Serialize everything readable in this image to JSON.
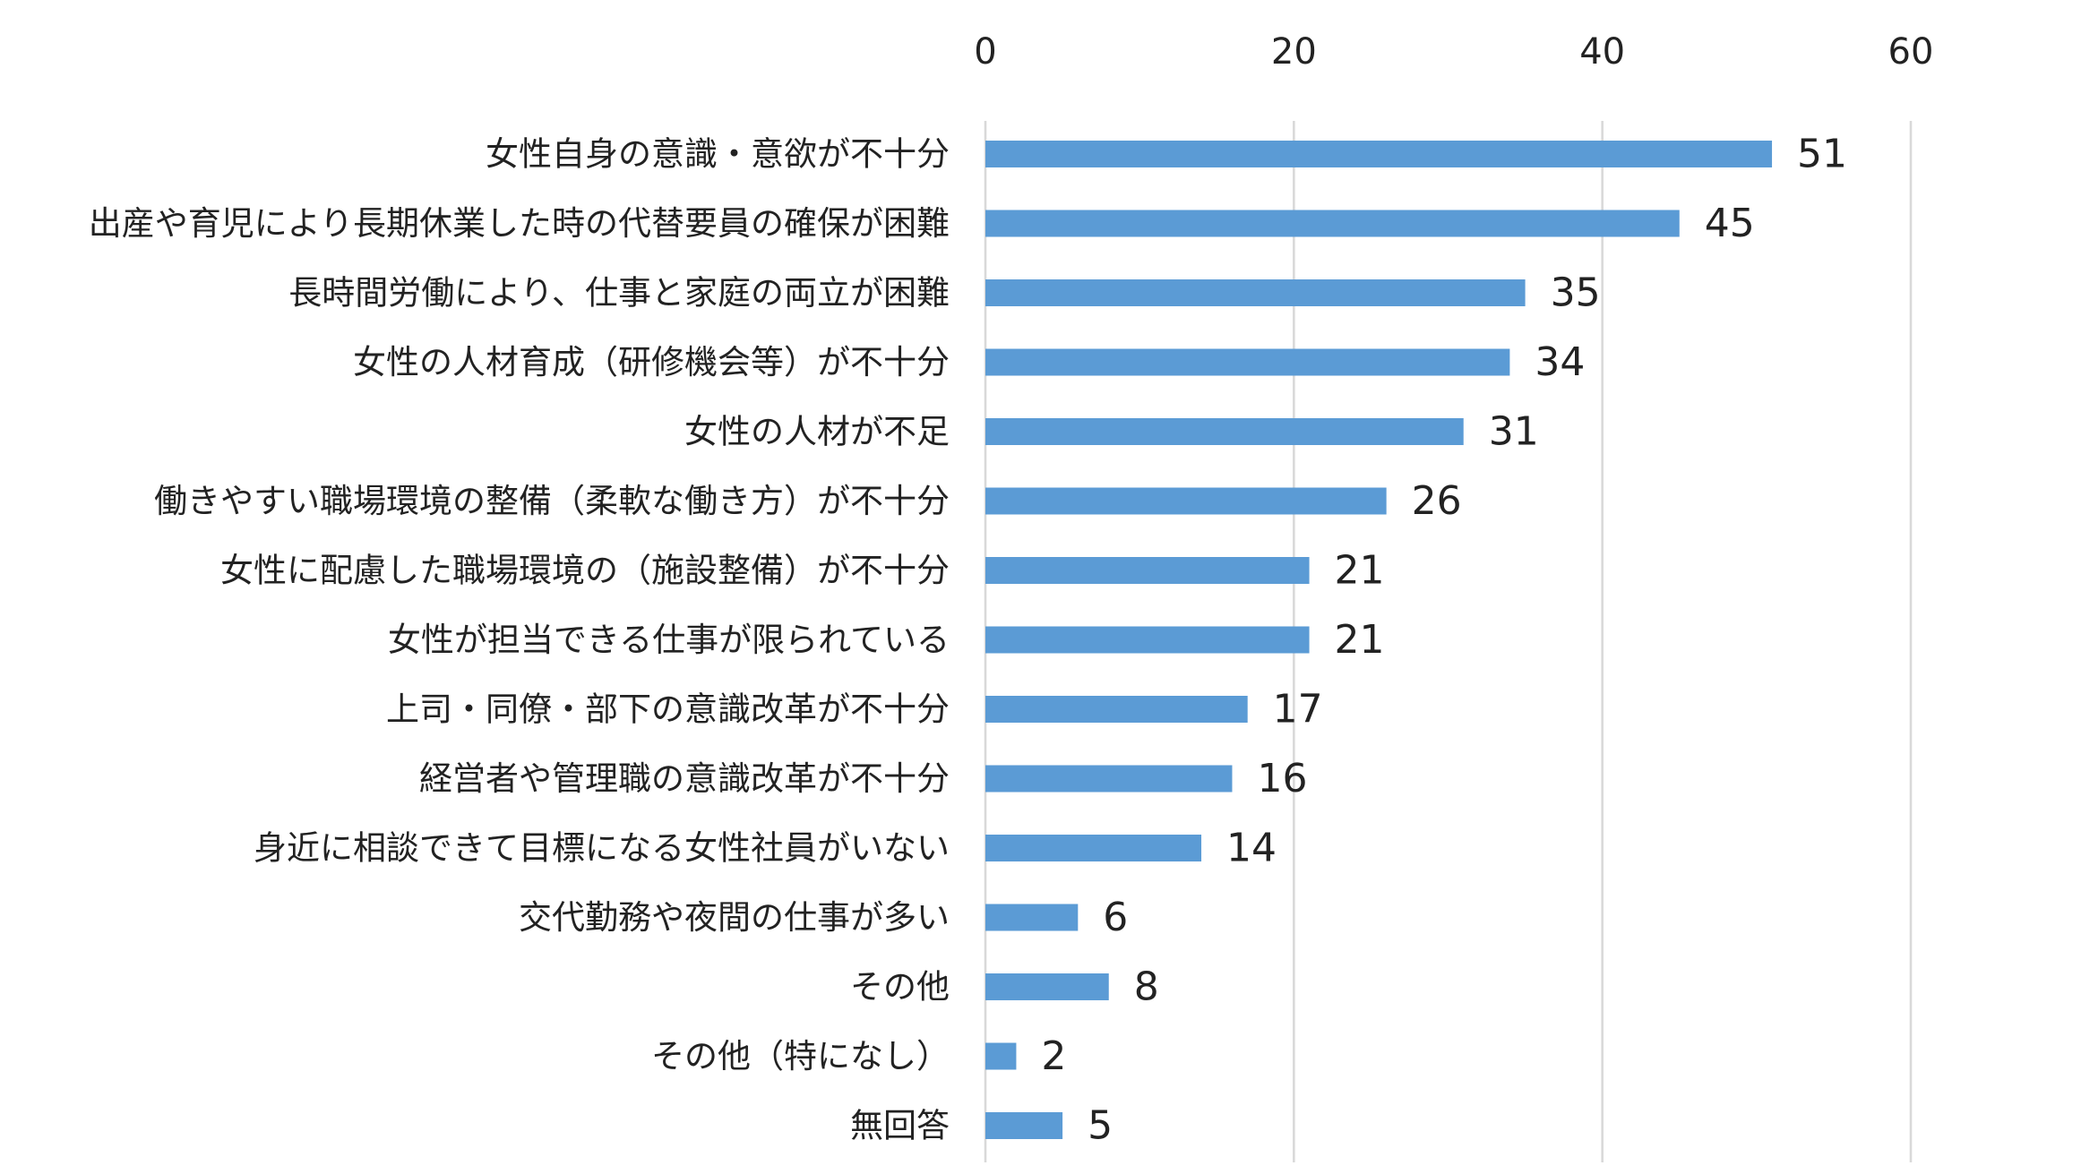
{
  "chart_data": {
    "type": "bar",
    "orientation": "horizontal",
    "categories": [
      "女性自身の意識・意欲が不十分",
      "出産や育児により長期休業した時の代替要員の確保が困難",
      "長時間労働により、仕事と家庭の両立が困難",
      "女性の人材育成（研修機会等）が不十分",
      "女性の人材が不足",
      "働きやすい職場環境の整備（柔軟な働き方）が不十分",
      "女性に配慮した職場環境の（施設整備）が不十分",
      "女性が担当できる仕事が限られている",
      "上司・同僚・部下の意識改革が不十分",
      "経営者や管理職の意識改革が不十分",
      "身近に相談できて目標になる女性社員がいない",
      "交代勤務や夜間の仕事が多い",
      "その他",
      "その他（特になし）",
      "無回答"
    ],
    "values": [
      51,
      45,
      35,
      34,
      31,
      26,
      21,
      21,
      17,
      16,
      14,
      6,
      8,
      2,
      5
    ],
    "xlim": [
      0,
      60
    ],
    "x_ticks": [
      0,
      20,
      40,
      60
    ],
    "x_axis_position": "top",
    "grid": true,
    "data_labels": true,
    "title": "",
    "xlabel": "",
    "ylabel": "",
    "bar_color": "#5b9bd5",
    "grid_color": "#d9d9d9",
    "text_color": "#222222"
  }
}
